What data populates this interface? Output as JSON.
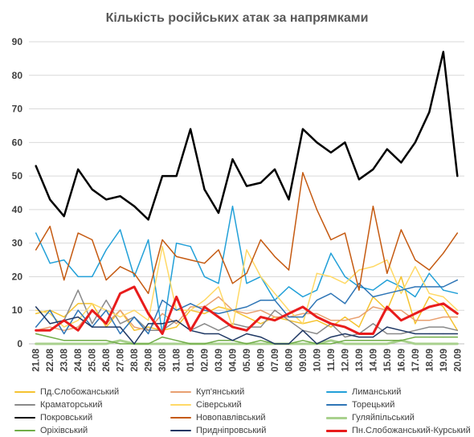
{
  "chart_data": {
    "type": "line",
    "title": "Кількість російських атак за напрямками",
    "categories": [
      "21.08",
      "22.08",
      "23.08",
      "24.08",
      "25.08",
      "26.08",
      "27.08",
      "28.08",
      "29.08",
      "30.08",
      "31.08",
      "01.09",
      "02.09",
      "03.09",
      "04.09",
      "05.09",
      "06.09",
      "07.09",
      "08.09",
      "09.09",
      "10.09",
      "11.09",
      "12.09",
      "13.09",
      "14.09",
      "15.09",
      "16.09",
      "17.09",
      "18.09",
      "19.09",
      "20.09"
    ],
    "ylim": [
      0,
      90
    ],
    "yticks": [
      0,
      10,
      20,
      30,
      40,
      50,
      60,
      70,
      80,
      90
    ],
    "grid": true,
    "legend_position": "bottom",
    "series": [
      {
        "name": "Пд.Слобожанський",
        "color": "#F5C330",
        "width": 1.5,
        "values": [
          9,
          10,
          8,
          12,
          12,
          5,
          10,
          4,
          5,
          4,
          5,
          10,
          9,
          11,
          10,
          8,
          6,
          8,
          7,
          6,
          7,
          5,
          8,
          5,
          14,
          10,
          20,
          6,
          14,
          11,
          4
        ]
      },
      {
        "name": "Куп'янський",
        "color": "#E8A070",
        "width": 1.5,
        "values": [
          4,
          5,
          4,
          5,
          10,
          6,
          10,
          5,
          4,
          9,
          6,
          11,
          11,
          14,
          10,
          9,
          10,
          8,
          8,
          9,
          9,
          7,
          7,
          8,
          11,
          10,
          10,
          7,
          7,
          8,
          8
        ]
      },
      {
        "name": "Лиманський",
        "color": "#22A0D8",
        "width": 1.5,
        "values": [
          33,
          24,
          25,
          20,
          20,
          28,
          34,
          20,
          31,
          3,
          30,
          29,
          20,
          18,
          41,
          18,
          20,
          13,
          17,
          14,
          16,
          27,
          20,
          17,
          16,
          19,
          17,
          14,
          21,
          16,
          15
        ]
      },
      {
        "name": "Краматорський",
        "color": "#8A8A8A",
        "width": 1.5,
        "values": [
          4,
          4,
          7,
          16,
          6,
          13,
          6,
          8,
          4,
          4,
          7,
          4,
          6,
          4,
          6,
          5,
          5,
          10,
          7,
          4,
          3,
          6,
          2,
          3,
          6,
          3,
          3,
          4,
          5,
          5,
          4
        ]
      },
      {
        "name": "Сіверський",
        "color": "#FFD966",
        "width": 1.5,
        "values": [
          10,
          9,
          5,
          7,
          12,
          10,
          8,
          10,
          7,
          29,
          10,
          10,
          13,
          17,
          5,
          28,
          20,
          15,
          10,
          6,
          21,
          20,
          18,
          22,
          23,
          25,
          15,
          23,
          15,
          14,
          10
        ]
      },
      {
        "name": "Торецький",
        "color": "#2E75B6",
        "width": 1.5,
        "values": [
          5,
          10,
          3,
          10,
          5,
          10,
          3,
          8,
          3,
          13,
          10,
          12,
          10,
          9,
          10,
          11,
          13,
          13,
          8,
          8,
          13,
          15,
          12,
          18,
          14,
          15,
          16,
          17,
          17,
          17,
          19
        ]
      },
      {
        "name": "Покровський",
        "color": "#000000",
        "width": 2.5,
        "values": [
          53,
          43,
          38,
          52,
          46,
          43,
          44,
          41,
          37,
          50,
          50,
          64,
          46,
          39,
          55,
          47,
          48,
          52,
          43,
          64,
          60,
          57,
          60,
          49,
          52,
          58,
          54,
          60,
          69,
          87,
          50
        ]
      },
      {
        "name": "Новопавлівський",
        "color": "#C55A11",
        "width": 1.5,
        "values": [
          28,
          35,
          19,
          33,
          31,
          19,
          23,
          21,
          15,
          31,
          26,
          25,
          24,
          28,
          18,
          21,
          31,
          26,
          22,
          51,
          40,
          31,
          33,
          16,
          41,
          21,
          34,
          25,
          22,
          27,
          33
        ]
      },
      {
        "name": "Гуляйпільський",
        "color": "#A9D18E",
        "width": 3,
        "values": [
          0,
          0,
          0,
          0,
          0,
          0,
          1,
          0,
          0,
          0,
          0,
          0,
          0,
          0,
          0,
          0,
          0,
          0,
          0,
          0,
          0,
          1,
          0,
          0,
          0,
          0,
          1,
          0,
          0,
          0,
          0
        ]
      },
      {
        "name": "Оріхівський",
        "color": "#70AD47",
        "width": 1.5,
        "values": [
          3,
          2,
          1,
          1,
          1,
          1,
          0,
          0,
          0,
          2,
          1,
          0,
          0,
          1,
          1,
          0,
          1,
          0,
          0,
          1,
          0,
          0,
          1,
          1,
          1,
          1,
          1,
          2,
          2,
          2,
          2
        ]
      },
      {
        "name": "Придніпровський",
        "color": "#1F3864",
        "width": 1.5,
        "values": [
          11,
          6,
          7,
          8,
          5,
          5,
          5,
          0,
          6,
          6,
          7,
          4,
          3,
          3,
          1,
          3,
          2,
          0,
          0,
          4,
          0,
          2,
          3,
          2,
          2,
          5,
          4,
          3,
          3,
          3,
          3
        ]
      },
      {
        "name": "Пн.Слобожанський-Курський",
        "color": "#E81C1C",
        "width": 3,
        "values": [
          4,
          4,
          7,
          4,
          10,
          6,
          15,
          17,
          9,
          3,
          14,
          4,
          11,
          8,
          5,
          4,
          8,
          7,
          9,
          11,
          8,
          6,
          5,
          3,
          3,
          11,
          7,
          9,
          11,
          12,
          9
        ]
      }
    ]
  }
}
